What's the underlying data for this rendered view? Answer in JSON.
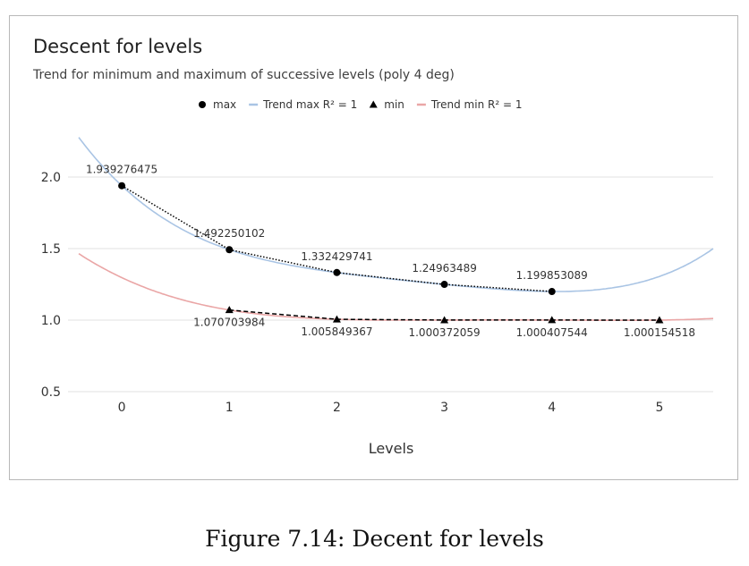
{
  "chart_data": {
    "type": "line",
    "title": "Descent for levels",
    "subtitle": "Trend for minimum and maximum of successive levels (poly 4 deg)",
    "xlabel": "Levels",
    "ylabel": "",
    "x_ticks": [
      0,
      1,
      2,
      3,
      4,
      5
    ],
    "y_ticks": [
      0.5,
      1.0,
      1.5,
      2.0
    ],
    "y_tick_labels": [
      "0.5",
      "1.0",
      "1.5",
      "2.0"
    ],
    "xlim": [
      -0.5,
      5.5
    ],
    "ylim": [
      0.5,
      2.0
    ],
    "grid": "horizontal",
    "legend_position": "top-center",
    "legend": [
      {
        "label": "max",
        "kind": "marker",
        "marker": "circle",
        "color": "#000000"
      },
      {
        "label": "Trend max R² = 1",
        "kind": "line",
        "color": "#a9c4e4"
      },
      {
        "label": "min",
        "kind": "marker",
        "marker": "triangle",
        "color": "#000000"
      },
      {
        "label": "Trend min R² = 1",
        "kind": "line",
        "color": "#eaa6a6"
      }
    ],
    "series": [
      {
        "name": "max",
        "x": [
          0,
          1,
          2,
          3,
          4
        ],
        "values": [
          1.939276475,
          1.492250102,
          1.332429741,
          1.24963489,
          1.199853089
        ],
        "labels": [
          "1.939276475",
          "1.492250102",
          "1.332429741",
          "1.24963489",
          "1.199853089"
        ],
        "marker": "circle",
        "line": "dotted",
        "color": "#000000"
      },
      {
        "name": "min",
        "x": [
          1,
          2,
          3,
          4,
          5
        ],
        "values": [
          1.070703984,
          1.005849367,
          1.000372059,
          1.000407544,
          1.000154518
        ],
        "labels": [
          "1.070703984",
          "1.005849367",
          "1.000372059",
          "1.000407544",
          "1.000154518"
        ],
        "marker": "triangle",
        "line": "dashed",
        "color": "#000000"
      }
    ],
    "trendlines": [
      {
        "name": "Trend max R² = 1",
        "type": "poly4",
        "color": "#a9c4e4"
      },
      {
        "name": "Trend min R² = 1",
        "type": "poly4",
        "color": "#eaa6a6"
      }
    ]
  },
  "figure": {
    "caption": "Figure 7.14: Decent for levels"
  }
}
